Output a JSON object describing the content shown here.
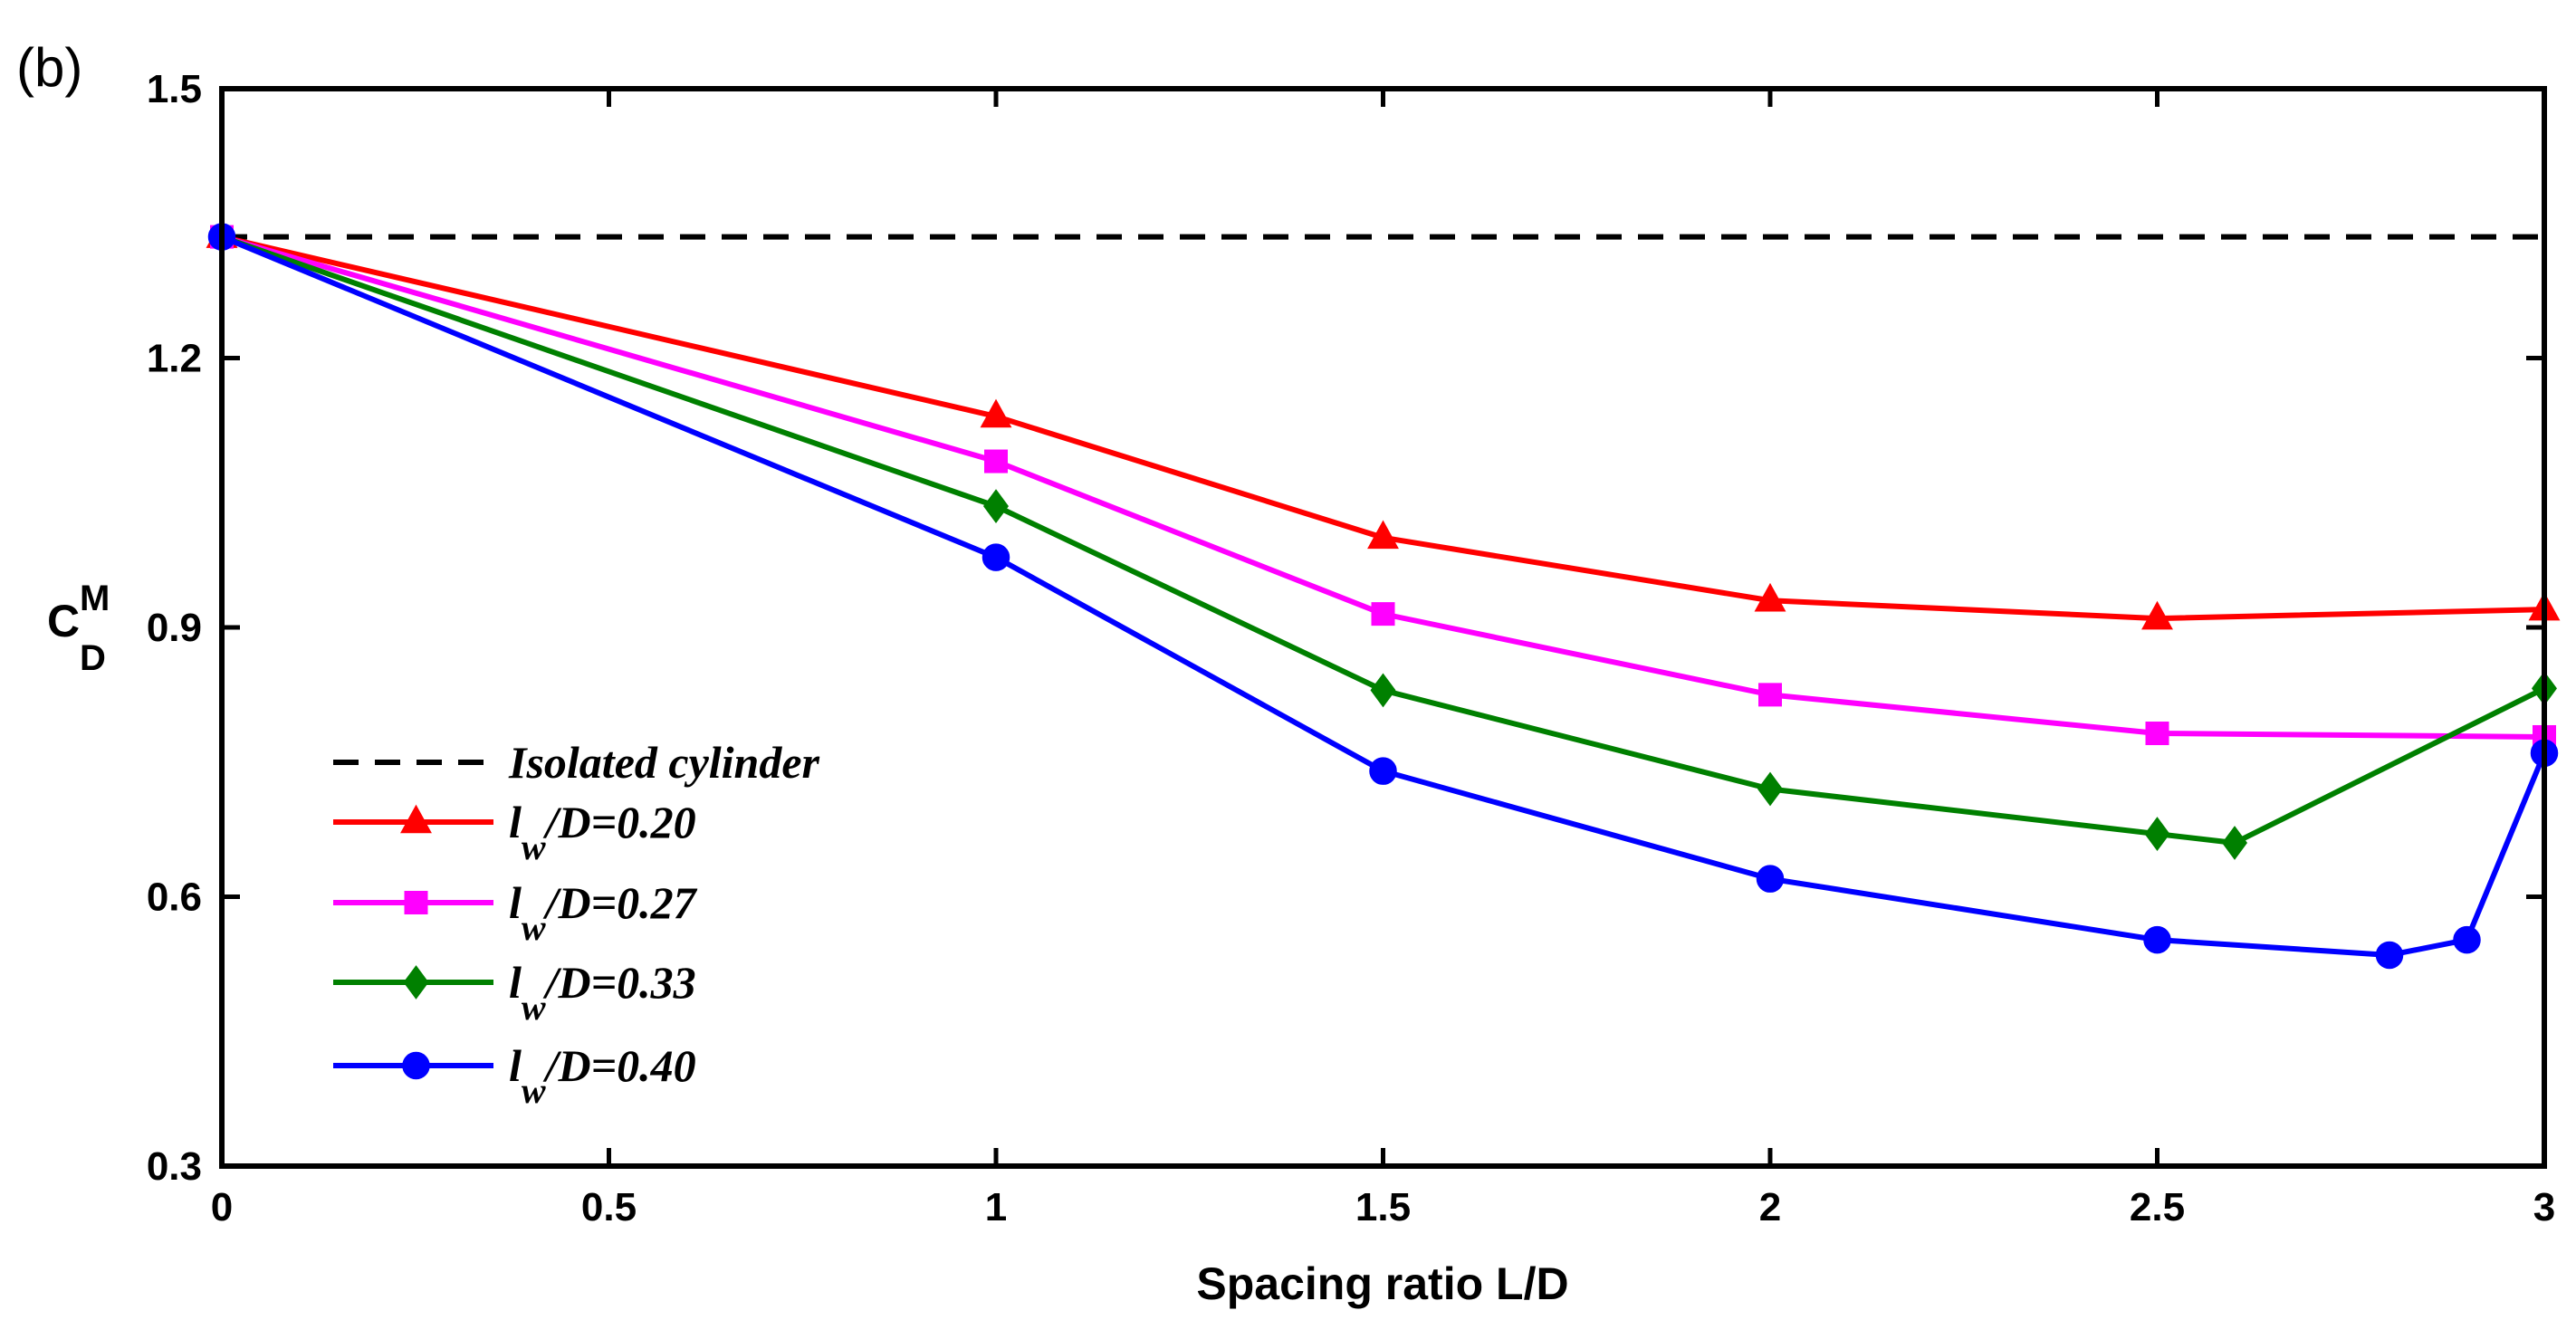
{
  "panel_label": "(b)",
  "chart_data": {
    "type": "line",
    "title": "",
    "xlabel": "Spacing ratio L/D",
    "ylabel": {
      "main": "C",
      "sub": "D",
      "sup": "M"
    },
    "xlim": [
      0,
      3
    ],
    "ylim": [
      0.3,
      1.5
    ],
    "xticks": [
      0,
      0.5,
      1,
      1.5,
      2,
      2.5,
      3
    ],
    "xtick_labels": [
      "0",
      "0.5",
      "1",
      "1.5",
      "2",
      "2.5",
      "3"
    ],
    "yticks": [
      0.3,
      0.6,
      0.9,
      1.2,
      1.5
    ],
    "ytick_labels": [
      "0.3",
      "0.6",
      "0.9",
      "1.2",
      "1.5"
    ],
    "legend_position": "bottom-left",
    "reference_line": {
      "name": "Isolated cylinder",
      "y": 1.335,
      "color": "#000000",
      "style": "dashed"
    },
    "series": [
      {
        "name_main": "l",
        "name_sub": "w",
        "name_rest": "/D=0.20",
        "color": "#ff0000",
        "marker": "triangle",
        "x": [
          0,
          1,
          1.5,
          2,
          2.5,
          3
        ],
        "y": [
          1.335,
          1.135,
          1.0,
          0.93,
          0.91,
          0.92
        ]
      },
      {
        "name_main": "l",
        "name_sub": "w",
        "name_rest": "/D=0.27",
        "color": "#ff00ff",
        "marker": "square",
        "x": [
          0,
          1,
          1.5,
          2,
          2.5,
          3
        ],
        "y": [
          1.335,
          1.085,
          0.915,
          0.825,
          0.782,
          0.778
        ]
      },
      {
        "name_main": "l",
        "name_sub": "w",
        "name_rest": "/D=0.33",
        "color": "#008000",
        "marker": "diamond",
        "x": [
          0,
          1,
          1.5,
          2,
          2.5,
          2.6,
          3
        ],
        "y": [
          1.335,
          1.035,
          0.83,
          0.72,
          0.67,
          0.66,
          0.832
        ]
      },
      {
        "name_main": "l",
        "name_sub": "w",
        "name_rest": "/D=0.40",
        "color": "#0000ff",
        "marker": "circle",
        "x": [
          0,
          1,
          1.5,
          2,
          2.5,
          2.8,
          2.9,
          3
        ],
        "y": [
          1.335,
          0.978,
          0.74,
          0.62,
          0.552,
          0.535,
          0.552,
          0.76
        ]
      }
    ]
  }
}
